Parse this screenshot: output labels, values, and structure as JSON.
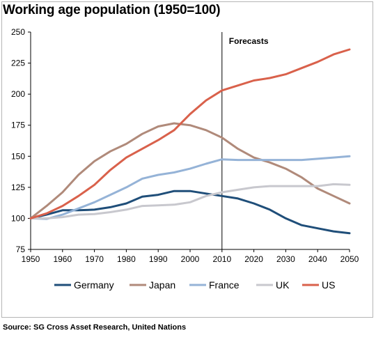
{
  "title": "Working age population (1950=100)",
  "source": "Source: SG Cross Asset Research, United Nations",
  "chart_data": {
    "type": "line",
    "title": "Working age population (1950=100)",
    "xlabel": "",
    "ylabel": "",
    "xlim": [
      1950,
      2050
    ],
    "ylim": [
      75,
      250
    ],
    "xticks": [
      1950,
      1960,
      1970,
      1980,
      1990,
      2000,
      2010,
      2020,
      2030,
      2040,
      2050
    ],
    "yticks": [
      75,
      100,
      125,
      150,
      175,
      200,
      225,
      250
    ],
    "grid": false,
    "legend_position": "bottom",
    "annotations": [
      {
        "label": "Forecasts",
        "x": 2010,
        "type": "vertical-line"
      }
    ],
    "x": [
      1950,
      1955,
      1960,
      1965,
      1970,
      1975,
      1980,
      1985,
      1990,
      1995,
      2000,
      2005,
      2010,
      2015,
      2020,
      2025,
      2030,
      2035,
      2040,
      2045,
      2050
    ],
    "series": [
      {
        "name": "Germany",
        "color": "#1f4e79",
        "values": [
          100,
          103,
          106.5,
          106.5,
          107,
          109,
          112,
          117.5,
          119,
          122,
          122,
          120,
          118,
          116,
          112,
          107,
          100,
          94.5,
          92,
          89.5,
          88
        ]
      },
      {
        "name": "Japan",
        "color": "#b08a7a",
        "values": [
          100,
          110,
          121,
          135,
          146,
          154,
          160,
          168,
          174,
          176.5,
          175,
          171,
          165,
          156,
          149,
          145,
          140,
          133,
          124,
          118,
          112
        ]
      },
      {
        "name": "France",
        "color": "#95b3d7",
        "values": [
          100,
          99.5,
          103,
          108,
          113,
          119,
          125,
          132,
          135,
          137,
          140,
          144,
          147.5,
          147,
          147,
          147,
          147,
          147,
          148,
          149,
          150
        ]
      },
      {
        "name": "UK",
        "color": "#c8c8ce",
        "values": [
          100,
          100,
          101,
          103,
          103.5,
          105,
          107,
          110,
          110.5,
          111,
          113,
          118,
          121,
          123,
          125,
          126,
          126,
          126,
          126,
          127.5,
          127
        ]
      },
      {
        "name": "US",
        "color": "#d9614b",
        "values": [
          100,
          104,
          110,
          118,
          127,
          139,
          149,
          156,
          163,
          171,
          184,
          195,
          203,
          207,
          211,
          213,
          216,
          221,
          226,
          232,
          236
        ]
      }
    ]
  }
}
